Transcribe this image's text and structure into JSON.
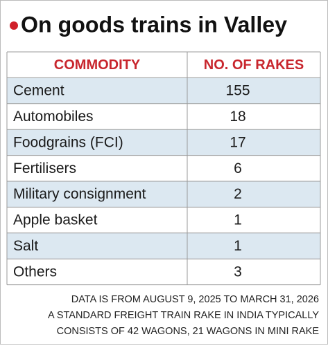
{
  "header": {
    "title": "On goods trains in Valley"
  },
  "table": {
    "columns": [
      "COMMODITY",
      "NO. OF RAKES"
    ],
    "rows": [
      [
        "Cement",
        155
      ],
      [
        "Automobiles",
        18
      ],
      [
        "Foodgrains (FCI)",
        17
      ],
      [
        "Fertilisers",
        6
      ],
      [
        "Military consignment",
        2
      ],
      [
        "Apple basket",
        1
      ],
      [
        "Salt",
        1
      ],
      [
        "Others",
        3
      ]
    ]
  },
  "footnotes": [
    "DATA IS FROM AUGUST 9, 2025 TO MARCH 31, 2026",
    "A STANDARD FREIGHT TRAIN RAKE IN INDIA TYPICALLY",
    "CONSISTS OF 42 WAGONS, 21 WAGONS IN MINI RAKE"
  ]
}
